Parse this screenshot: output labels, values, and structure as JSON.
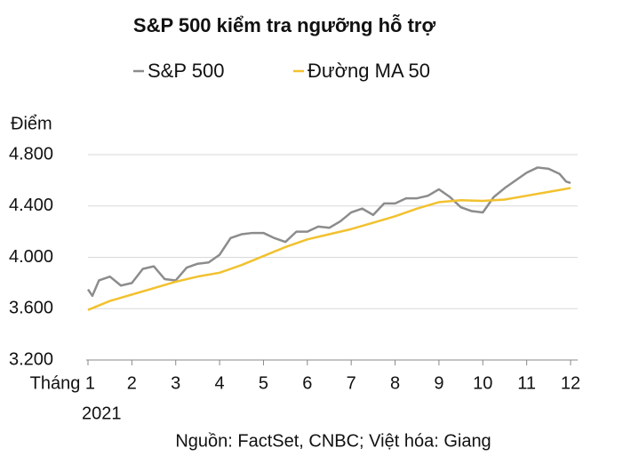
{
  "chart_data": {
    "type": "line",
    "title": "S&P 500 kiểm tra ngưỡng hỗ trợ",
    "y_label": "Điểm",
    "year_label": "2021",
    "source": "Nguồn: FactSet, CNBC; Việt hóa: Giang",
    "series": [
      {
        "name": "S&P 500",
        "color": "#8c8c8c",
        "x": [
          1,
          1.1,
          1.25,
          1.5,
          1.75,
          2,
          2.25,
          2.5,
          2.75,
          3,
          3.25,
          3.5,
          3.75,
          4,
          4.25,
          4.5,
          4.75,
          5,
          5.25,
          5.5,
          5.75,
          6,
          6.25,
          6.5,
          6.75,
          7,
          7.25,
          7.5,
          7.75,
          8,
          8.25,
          8.5,
          8.75,
          9,
          9.25,
          9.5,
          9.75,
          10,
          10.25,
          10.5,
          10.75,
          11,
          11.25,
          11.5,
          11.75,
          11.9,
          12
        ],
        "values": [
          3750,
          3700,
          3820,
          3850,
          3780,
          3800,
          3910,
          3930,
          3830,
          3820,
          3920,
          3950,
          3960,
          4020,
          4150,
          4180,
          4190,
          4190,
          4150,
          4120,
          4200,
          4200,
          4240,
          4230,
          4280,
          4350,
          4380,
          4330,
          4420,
          4420,
          4460,
          4460,
          4480,
          4530,
          4470,
          4390,
          4360,
          4350,
          4470,
          4540,
          4600,
          4660,
          4700,
          4690,
          4650,
          4590,
          4580
        ]
      },
      {
        "name": "Đường MA 50",
        "color": "#f2c12e",
        "x": [
          1,
          1.5,
          2,
          2.5,
          3,
          3.5,
          4,
          4.5,
          5,
          5.5,
          6,
          6.5,
          7,
          7.5,
          8,
          8.5,
          9,
          9.5,
          10,
          10.5,
          11,
          11.5,
          12
        ],
        "values": [
          3590,
          3660,
          3710,
          3760,
          3810,
          3850,
          3880,
          3940,
          4010,
          4080,
          4140,
          4180,
          4220,
          4270,
          4320,
          4380,
          4430,
          4445,
          4440,
          4450,
          4480,
          4510,
          4540
        ]
      }
    ],
    "xlim": [
      1,
      12
    ],
    "xticks": [
      {
        "value": 1,
        "label": "Tháng 1"
      },
      2,
      3,
      4,
      5,
      6,
      7,
      8,
      9,
      10,
      11,
      12
    ],
    "ylim": [
      3200,
      4800
    ],
    "yticks": [
      {
        "value": 3200,
        "label": "3.200"
      },
      {
        "value": 3600,
        "label": "3.600"
      },
      {
        "value": 4000,
        "label": "4.000"
      },
      {
        "value": 4400,
        "label": "4.400"
      },
      {
        "value": 4800,
        "label": "4.800"
      }
    ],
    "grid": true
  }
}
